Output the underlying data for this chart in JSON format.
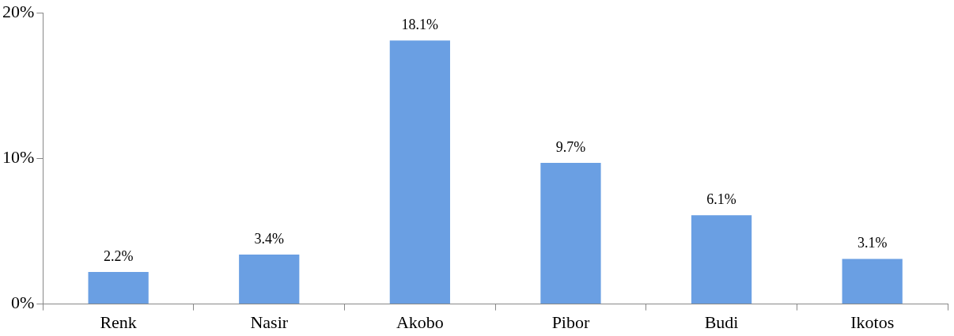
{
  "chart_data": {
    "type": "bar",
    "categories": [
      "Renk",
      "Nasir",
      "Akobo",
      "Pibor",
      "Budi",
      "Ikotos"
    ],
    "values": [
      2.2,
      3.4,
      18.1,
      9.7,
      6.1,
      3.1
    ],
    "color": "#6a9fe3",
    "value_labels": [
      "2.2%",
      "3.4%",
      "18.1%",
      "9.7%",
      "6.1%",
      "3.1%"
    ],
    "ylim": [
      0,
      20
    ],
    "yticks": [
      {
        "value": 0,
        "label": "0%"
      },
      {
        "value": 10,
        "label": "10%"
      },
      {
        "value": 20,
        "label": "20%"
      }
    ],
    "grid": false,
    "legend": false
  }
}
